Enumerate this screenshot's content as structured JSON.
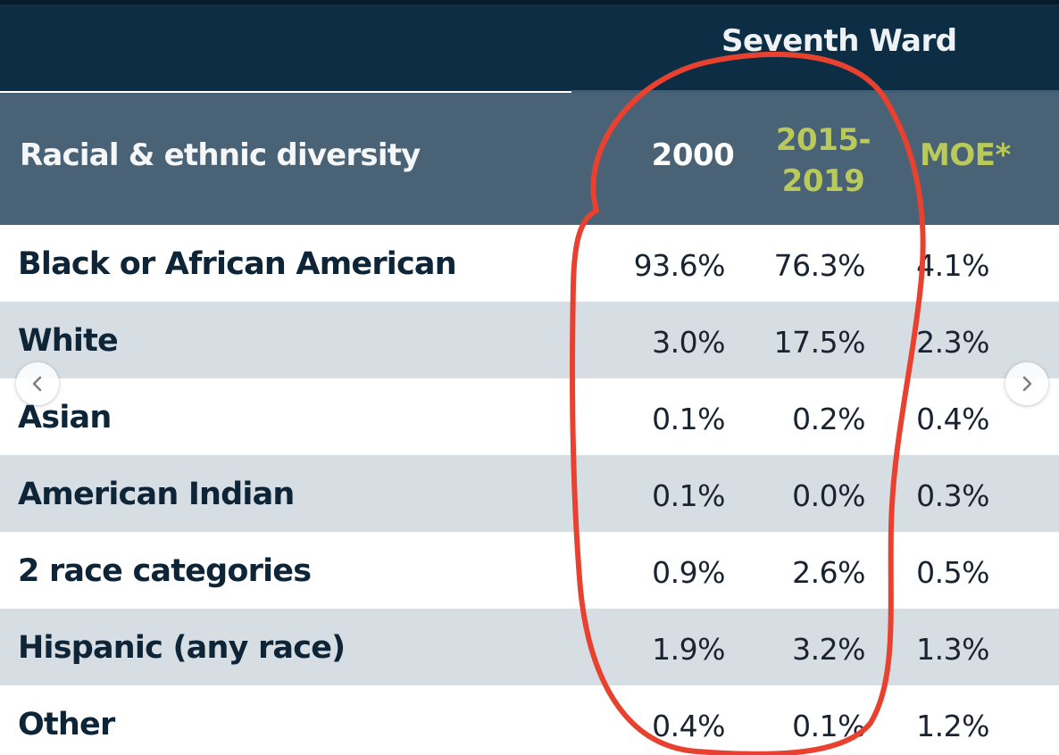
{
  "table": {
    "group_header": "Seventh Ward",
    "row_header": "Racial & ethnic diversity",
    "columns": [
      "2000",
      "2015-\n2019",
      "MOE*"
    ],
    "rows": [
      {
        "label": "Black or African American",
        "values": [
          "93.6%",
          "76.3%",
          "4.1%"
        ]
      },
      {
        "label": "White",
        "values": [
          "3.0%",
          "17.5%",
          "2.3%"
        ]
      },
      {
        "label": "Asian",
        "values": [
          "0.1%",
          "0.2%",
          "0.4%"
        ]
      },
      {
        "label": "American Indian",
        "values": [
          "0.1%",
          "0.0%",
          "0.3%"
        ]
      },
      {
        "label": "2 race categories",
        "values": [
          "0.9%",
          "2.6%",
          "0.5%"
        ]
      },
      {
        "label": "Hispanic (any race)",
        "values": [
          "1.9%",
          "3.2%",
          "1.3%"
        ]
      },
      {
        "label": "Other",
        "values": [
          "0.4%",
          "0.1%",
          "1.2%"
        ]
      }
    ]
  },
  "navigation": {
    "prev_icon": "chevron-left-icon",
    "next_icon": "chevron-right-icon"
  },
  "colors": {
    "header_dark": "#0c2d44",
    "header_slate": "#4a6275",
    "accent_green": "#b9c95a",
    "stripe": "#d6dde3",
    "annotation_red": "#e8412f"
  }
}
